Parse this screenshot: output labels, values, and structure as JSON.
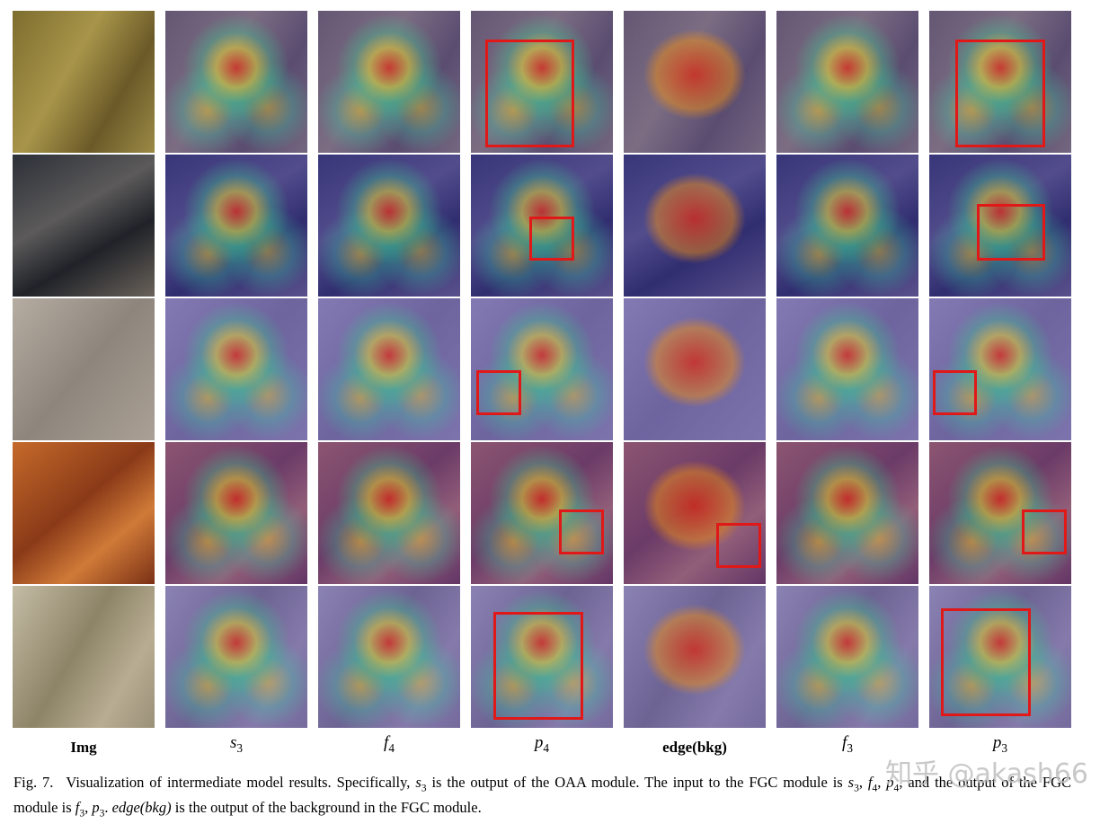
{
  "figure": {
    "column_labels": [
      "Img",
      {
        "v": "s",
        "sub": "3"
      },
      {
        "v": "f",
        "sub": "4"
      },
      {
        "v": "p",
        "sub": "4"
      },
      "edge(bkg)",
      {
        "v": "f",
        "sub": "3"
      },
      {
        "v": "p",
        "sub": "3"
      }
    ],
    "caption": {
      "parts": [
        "Fig. 7.",
        "Visualization of intermediate model results. Specifically, ",
        {
          "v": "s",
          "sub": "3"
        },
        " is the output of the OAA module. The input to the FGC module is ",
        {
          "v": "s",
          "sub": "3"
        },
        ", ",
        {
          "v": "f",
          "sub": "4"
        },
        ", ",
        {
          "v": "p",
          "sub": "4"
        },
        ", and the output of the FGC module is ",
        {
          "v": "f",
          "sub": "3"
        },
        ", ",
        {
          "v": "p",
          "sub": "3"
        },
        ". ",
        {
          "v": "edge(bkg)"
        },
        " is the output of the background in the FGC module."
      ]
    },
    "watermark": "知乎 @akash66"
  }
}
